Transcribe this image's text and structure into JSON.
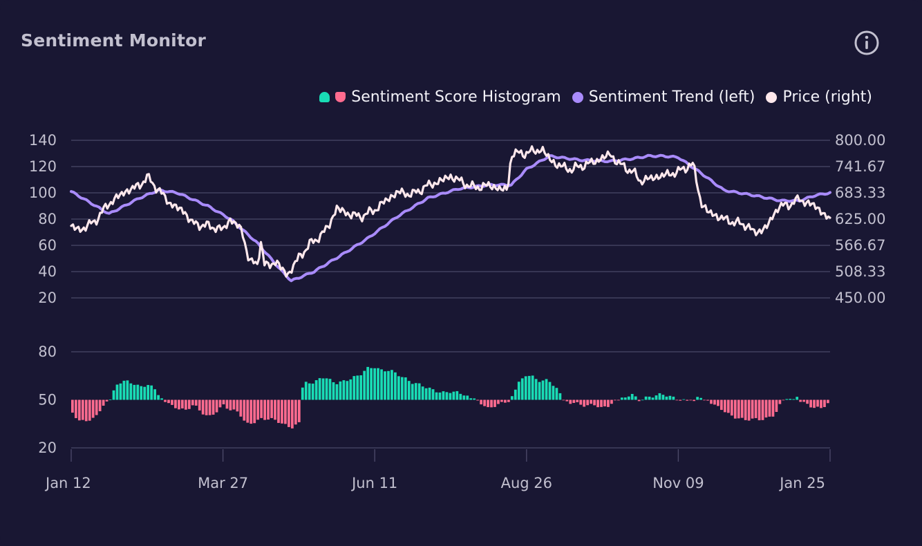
{
  "header": {
    "title": "Sentiment Monitor",
    "info_icon": "info-icon"
  },
  "legend": {
    "histogram_label": "Sentiment Score Histogram",
    "trend_label": "Sentiment Trend (left)",
    "price_label": "Price (right)"
  },
  "colors": {
    "background": "#191733",
    "positive": "#19dcb5",
    "negative": "#ff6b8f",
    "trend": "#a98bfb",
    "price": "#ffe8ec",
    "grid": "#4a4868",
    "text": "#c2c0cf"
  },
  "chart_data": {
    "type": "line+bar",
    "title": "Sentiment Monitor",
    "x_labels": [
      "Jan 12",
      "Mar 27",
      "Jun 11",
      "Aug 26",
      "Nov 09",
      "Jan 25"
    ],
    "upper_panel": {
      "left_axis": {
        "ticks": [
          "140",
          "120",
          "100",
          "80",
          "60",
          "40",
          "20"
        ],
        "range": [
          20,
          140
        ]
      },
      "right_axis": {
        "ticks": [
          "800.00",
          "741.67",
          "683.33",
          "625.00",
          "566.67",
          "508.33",
          "450.00"
        ],
        "range": [
          450,
          800
        ]
      },
      "series": [
        {
          "name": "Sentiment Trend (left)",
          "axis": "left",
          "keypoints": [
            [
              0,
              101
            ],
            [
              0.05,
              84
            ],
            [
              0.09,
              96
            ],
            [
              0.115,
              102
            ],
            [
              0.14,
              100
            ],
            [
              0.18,
              90
            ],
            [
              0.21,
              80
            ],
            [
              0.245,
              62
            ],
            [
              0.275,
              42
            ],
            [
              0.29,
              33
            ],
            [
              0.32,
              40
            ],
            [
              0.36,
              54
            ],
            [
              0.39,
              65
            ],
            [
              0.43,
              82
            ],
            [
              0.47,
              96
            ],
            [
              0.51,
              103
            ],
            [
              0.55,
              106
            ],
            [
              0.58,
              106
            ],
            [
              0.6,
              118
            ],
            [
              0.63,
              128
            ],
            [
              0.67,
              125
            ],
            [
              0.71,
              124
            ],
            [
              0.74,
              126
            ],
            [
              0.76,
              128
            ],
            [
              0.78,
              128
            ],
            [
              0.8,
              127
            ],
            [
              0.83,
              115
            ],
            [
              0.86,
              102
            ],
            [
              0.9,
              98
            ],
            [
              0.935,
              94
            ],
            [
              0.96,
              94
            ],
            [
              0.98,
              98
            ],
            [
              1.0,
              100
            ]
          ]
        },
        {
          "name": "Price (right)",
          "axis": "right",
          "keypoints": [
            [
              0,
              610
            ],
            [
              0.01,
              600
            ],
            [
              0.03,
              618
            ],
            [
              0.05,
              660
            ],
            [
              0.07,
              685
            ],
            [
              0.09,
              700
            ],
            [
              0.1,
              718
            ],
            [
              0.11,
              700
            ],
            [
              0.13,
              660
            ],
            [
              0.15,
              640
            ],
            [
              0.16,
              615
            ],
            [
              0.18,
              610
            ],
            [
              0.2,
              602
            ],
            [
              0.21,
              625
            ],
            [
              0.225,
              600
            ],
            [
              0.235,
              530
            ],
            [
              0.245,
              525
            ],
            [
              0.25,
              575
            ],
            [
              0.255,
              520
            ],
            [
              0.27,
              530
            ],
            [
              0.285,
              500
            ],
            [
              0.3,
              540
            ],
            [
              0.315,
              570
            ],
            [
              0.33,
              590
            ],
            [
              0.34,
              612
            ],
            [
              0.35,
              650
            ],
            [
              0.36,
              640
            ],
            [
              0.38,
              630
            ],
            [
              0.4,
              645
            ],
            [
              0.41,
              660
            ],
            [
              0.43,
              685
            ],
            [
              0.45,
              680
            ],
            [
              0.47,
              700
            ],
            [
              0.48,
              705
            ],
            [
              0.5,
              720
            ],
            [
              0.53,
              695
            ],
            [
              0.55,
              700
            ],
            [
              0.57,
              690
            ],
            [
              0.575,
              690
            ],
            [
              0.58,
              770
            ],
            [
              0.6,
              772
            ],
            [
              0.62,
              780
            ],
            [
              0.63,
              760
            ],
            [
              0.64,
              745
            ],
            [
              0.66,
              735
            ],
            [
              0.67,
              742
            ],
            [
              0.685,
              750
            ],
            [
              0.7,
              760
            ],
            [
              0.71,
              770
            ],
            [
              0.72,
              750
            ],
            [
              0.74,
              730
            ],
            [
              0.75,
              710
            ],
            [
              0.77,
              718
            ],
            [
              0.8,
              730
            ],
            [
              0.815,
              745
            ],
            [
              0.82,
              745
            ],
            [
              0.83,
              660
            ],
            [
              0.84,
              640
            ],
            [
              0.86,
              625
            ],
            [
              0.88,
              615
            ],
            [
              0.89,
              612
            ],
            [
              0.9,
              595
            ],
            [
              0.91,
              600
            ],
            [
              0.92,
              615
            ],
            [
              0.93,
              650
            ],
            [
              0.95,
              660
            ],
            [
              0.96,
              670
            ],
            [
              0.97,
              660
            ],
            [
              0.98,
              655
            ],
            [
              0.99,
              640
            ],
            [
              1.0,
              620
            ]
          ]
        }
      ]
    },
    "lower_panel": {
      "axis": {
        "ticks": [
          "80",
          "50",
          "20"
        ],
        "range": [
          20,
          80
        ],
        "baseline": 50
      },
      "series": [
        {
          "name": "Sentiment Score Histogram",
          "type": "bar",
          "bar_count": 221,
          "keypoints": [
            [
              0,
              42
            ],
            [
              0.01,
              37
            ],
            [
              0.03,
              38
            ],
            [
              0.04,
              46
            ],
            [
              0.05,
              50
            ],
            [
              0.06,
              60
            ],
            [
              0.07,
              62
            ],
            [
              0.08,
              61
            ],
            [
              0.09,
              58
            ],
            [
              0.1,
              59
            ],
            [
              0.11,
              56
            ],
            [
              0.12,
              50
            ],
            [
              0.13,
              46
            ],
            [
              0.15,
              44
            ],
            [
              0.16,
              47
            ],
            [
              0.17,
              42
            ],
            [
              0.18,
              39
            ],
            [
              0.19,
              43
            ],
            [
              0.2,
              47
            ],
            [
              0.21,
              43
            ],
            [
              0.22,
              42
            ],
            [
              0.23,
              35
            ],
            [
              0.25,
              38
            ],
            [
              0.27,
              37
            ],
            [
              0.28,
              35
            ],
            [
              0.29,
              33
            ],
            [
              0.3,
              35
            ],
            [
              0.3001,
              54
            ],
            [
              0.31,
              62
            ],
            [
              0.32,
              60
            ],
            [
              0.33,
              64
            ],
            [
              0.35,
              61
            ],
            [
              0.37,
              63
            ],
            [
              0.38,
              65
            ],
            [
              0.39,
              70
            ],
            [
              0.4,
              71
            ],
            [
              0.41,
              68
            ],
            [
              0.42,
              68
            ],
            [
              0.44,
              64
            ],
            [
              0.45,
              61
            ],
            [
              0.47,
              57
            ],
            [
              0.48,
              56
            ],
            [
              0.49,
              55
            ],
            [
              0.5,
              55
            ],
            [
              0.52,
              53
            ],
            [
              0.53,
              50
            ],
            [
              0.54,
              48
            ],
            [
              0.55,
              45
            ],
            [
              0.56,
              47
            ],
            [
              0.57,
              48
            ],
            [
              0.58,
              49
            ],
            [
              0.5801,
              52
            ],
            [
              0.59,
              60
            ],
            [
              0.6,
              65
            ],
            [
              0.61,
              64
            ],
            [
              0.62,
              62
            ],
            [
              0.63,
              63
            ],
            [
              0.64,
              57
            ],
            [
              0.65,
              50
            ],
            [
              0.66,
              48
            ],
            [
              0.68,
              46
            ],
            [
              0.69,
              48
            ],
            [
              0.7,
              45
            ],
            [
              0.71,
              46
            ],
            [
              0.72,
              49
            ],
            [
              0.73,
              51
            ],
            [
              0.74,
              53
            ],
            [
              0.75,
              50
            ],
            [
              0.76,
              52
            ],
            [
              0.78,
              53
            ],
            [
              0.79,
              52
            ],
            [
              0.8,
              51
            ],
            [
              0.81,
              50
            ],
            [
              0.82,
              49
            ],
            [
              0.83,
              51
            ],
            [
              0.84,
              50
            ],
            [
              0.85,
              46
            ],
            [
              0.86,
              44
            ],
            [
              0.87,
              41
            ],
            [
              0.89,
              37
            ],
            [
              0.91,
              38
            ],
            [
              0.92,
              39
            ],
            [
              0.93,
              41
            ],
            [
              0.94,
              49
            ],
            [
              0.95,
              51
            ],
            [
              0.96,
              51
            ],
            [
              0.97,
              48
            ],
            [
              0.98,
              45
            ],
            [
              0.99,
              44
            ],
            [
              1.0,
              48
            ],
            [
              1.0,
              48
            ]
          ]
        }
      ]
    }
  }
}
